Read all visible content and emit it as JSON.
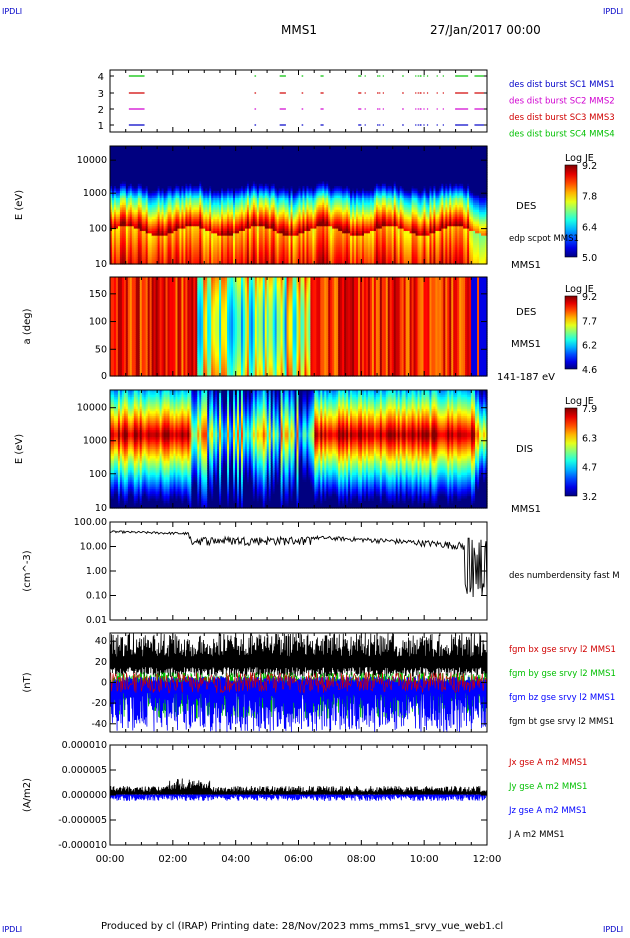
{
  "corner_labels": {
    "tl": "IPDLI",
    "tr": "IPDLI",
    "bl": "IPDLI",
    "br": "IPDLI"
  },
  "header": {
    "spacecraft": "MMS1",
    "datetime": "27/Jan/2017 00:00"
  },
  "footer": "Produced by cl (IRAP)   Printing date: 28/Nov/2023   mms_mms1_srvy_vue_web1.cl",
  "chart_data": [
    {
      "id": "burst",
      "type": "line",
      "yticks": [
        "4",
        "3",
        "2",
        "1"
      ],
      "legend": [
        {
          "name": "des dist burst SC1 MMS1",
          "color": "#0000c8"
        },
        {
          "name": "des dist burst SC2 MMS2",
          "color": "#d000d0"
        },
        {
          "name": "des dist burst SC3 MMS3",
          "color": "#d00000"
        },
        {
          "name": "des dist burst SC4 MMS4",
          "color": "#00c000"
        }
      ],
      "intervals_hours": [
        [
          0.6,
          1.1
        ],
        [
          4.6,
          4.65
        ],
        [
          5.4,
          5.6
        ],
        [
          6.1,
          6.15
        ],
        [
          6.7,
          6.8
        ],
        [
          7.9,
          8.0
        ],
        [
          8.5,
          8.55
        ],
        [
          9.3,
          9.35
        ],
        [
          11.0,
          11.4
        ],
        [
          11.6,
          11.9
        ]
      ]
    },
    {
      "id": "des-energy",
      "type": "heatmap",
      "ylabel": "E (eV)",
      "yticks": [
        "10000",
        "1000",
        "100",
        "10"
      ],
      "ylim": [
        10,
        30000
      ],
      "scale": "log",
      "title": "Log JE",
      "colorbar_ticks": [
        "9.2",
        "7.8",
        "6.4",
        "5.0"
      ],
      "colorbar_range": [
        5.0,
        9.2
      ],
      "right_labels": [
        "DES",
        "edp scpot MMS1",
        "MMS1"
      ]
    },
    {
      "id": "des-pitch",
      "type": "heatmap",
      "ylabel": "a (deg)",
      "yticks": [
        "150",
        "100",
        "50",
        "0"
      ],
      "ylim": [
        0,
        180
      ],
      "title": "Log JE",
      "colorbar_ticks": [
        "9.2",
        "7.7",
        "6.2",
        "4.6"
      ],
      "colorbar_range": [
        4.6,
        9.2
      ],
      "right_labels": [
        "DES",
        "MMS1",
        "141-187 eV"
      ]
    },
    {
      "id": "dis-energy",
      "type": "heatmap",
      "ylabel": "E (eV)",
      "yticks": [
        "10000",
        "1000",
        "100",
        "10"
      ],
      "ylim": [
        10,
        30000
      ],
      "scale": "log",
      "title": "Log JE",
      "colorbar_ticks": [
        "7.9",
        "6.3",
        "4.7",
        "3.2"
      ],
      "colorbar_range": [
        3.2,
        7.9
      ],
      "right_labels": [
        "DIS",
        "MMS1"
      ]
    },
    {
      "id": "density",
      "type": "line",
      "ylabel": "(cm^-3)",
      "yticks": [
        "100.00",
        "10.00",
        "1.00",
        "0.10",
        "0.01"
      ],
      "ylim": [
        0.01,
        100
      ],
      "scale": "log",
      "legend": [
        {
          "name": "des numberdensity fast M",
          "color": "#000000"
        }
      ]
    },
    {
      "id": "bfield",
      "type": "line",
      "ylabel": "(nT)",
      "yticks": [
        "40",
        "20",
        "0",
        "-20",
        "-40"
      ],
      "ylim": [
        -48,
        48
      ],
      "legend": [
        {
          "name": "fgm bx gse srvy l2 MMS1",
          "color": "#d00000"
        },
        {
          "name": "fgm by gse srvy l2 MMS1",
          "color": "#00c000"
        },
        {
          "name": "fgm bz gse srvy l2 MMS1",
          "color": "#0000ff"
        },
        {
          "name": "fgm bt gse srvy l2 MMS1",
          "color": "#000000"
        }
      ]
    },
    {
      "id": "current",
      "type": "line",
      "ylabel": "(A/m2)",
      "yticks": [
        "0.000010",
        "0.000005",
        "0.000000",
        "-0.000005",
        "-0.000010"
      ],
      "ylim": [
        -1e-05,
        1e-05
      ],
      "legend": [
        {
          "name": "Jx gse A m2 MMS1",
          "color": "#d00000"
        },
        {
          "name": "Jy gse A m2 MMS1",
          "color": "#00c000"
        },
        {
          "name": "Jz gse A m2 MMS1",
          "color": "#0000ff"
        },
        {
          "name": "J A m2 MMS1",
          "color": "#000000"
        }
      ]
    }
  ],
  "time_axis": {
    "ticks": [
      "00:00",
      "02:00",
      "04:00",
      "06:00",
      "08:00",
      "10:00",
      "12:00"
    ],
    "range_hours": [
      0,
      12
    ]
  }
}
